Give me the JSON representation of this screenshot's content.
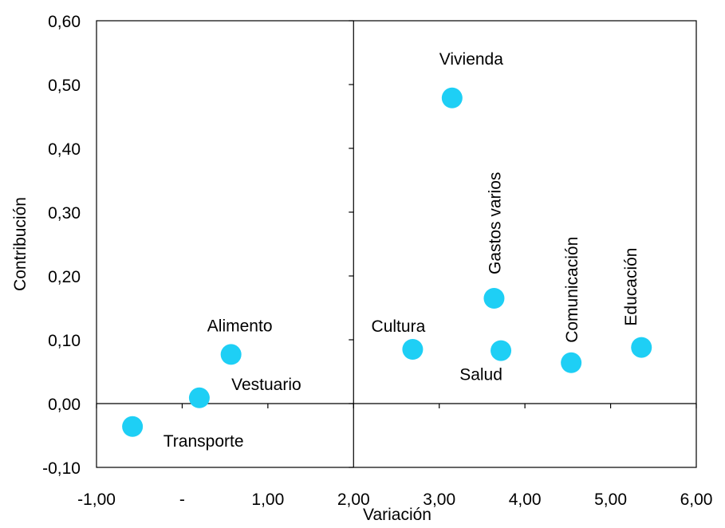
{
  "chart_data": {
    "type": "scatter",
    "xlabel": "Variación",
    "ylabel": "Contribución",
    "xlim": [
      -1,
      6
    ],
    "ylim": [
      -0.1,
      0.6
    ],
    "x_ticks": [
      {
        "value": -1,
        "label": "-1,00"
      },
      {
        "value": 0,
        "label": "-"
      },
      {
        "value": 1,
        "label": "1,00"
      },
      {
        "value": 2,
        "label": "2,00"
      },
      {
        "value": 3,
        "label": "3,00"
      },
      {
        "value": 4,
        "label": "4,00"
      },
      {
        "value": 5,
        "label": "5,00"
      },
      {
        "value": 6,
        "label": "6,00"
      }
    ],
    "y_ticks": [
      {
        "value": -0.1,
        "label": "-0,10"
      },
      {
        "value": 0,
        "label": "0,00"
      },
      {
        "value": 0.1,
        "label": "0,10"
      },
      {
        "value": 0.2,
        "label": "0,20"
      },
      {
        "value": 0.3,
        "label": "0,30"
      },
      {
        "value": 0.4,
        "label": "0,40"
      },
      {
        "value": 0.5,
        "label": "0,50"
      },
      {
        "value": 0.6,
        "label": "0,60"
      }
    ],
    "points": [
      {
        "label": "Vivienda",
        "x": 3.15,
        "y": 0.479
      },
      {
        "label": "Gastos varios",
        "x": 3.64,
        "y": 0.165
      },
      {
        "label": "Cultura",
        "x": 2.69,
        "y": 0.085
      },
      {
        "label": "Salud",
        "x": 3.72,
        "y": 0.083
      },
      {
        "label": "Comunicación",
        "x": 4.54,
        "y": 0.064
      },
      {
        "label": "Educación",
        "x": 5.36,
        "y": 0.088
      },
      {
        "label": "Alimento",
        "x": 0.57,
        "y": 0.077
      },
      {
        "label": "Vestuario",
        "x": 0.2,
        "y": 0.009
      },
      {
        "label": "Transporte",
        "x": -0.58,
        "y": -0.036
      }
    ],
    "marker_color": "#1ecff5",
    "grid": false
  }
}
